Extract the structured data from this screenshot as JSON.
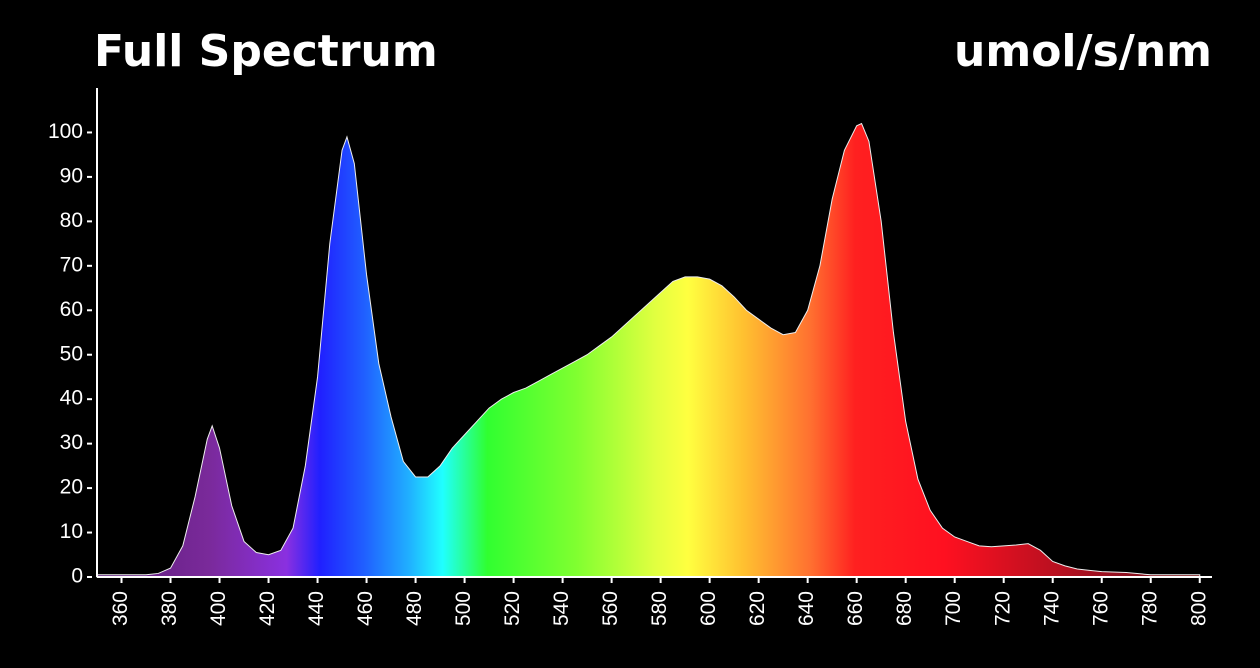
{
  "chart_data": {
    "type": "area",
    "title": "Full Spectrum",
    "y_label": "umol/s/nm",
    "x": [
      350,
      360,
      370,
      375,
      380,
      385,
      390,
      395,
      397,
      400,
      405,
      410,
      415,
      420,
      425,
      430,
      435,
      440,
      445,
      450,
      452,
      455,
      460,
      465,
      470,
      475,
      480,
      485,
      490,
      495,
      500,
      505,
      510,
      515,
      520,
      525,
      530,
      535,
      540,
      545,
      550,
      555,
      560,
      565,
      570,
      575,
      580,
      585,
      590,
      595,
      600,
      605,
      610,
      615,
      620,
      625,
      630,
      635,
      640,
      645,
      650,
      655,
      660,
      662,
      665,
      670,
      675,
      680,
      685,
      690,
      695,
      700,
      705,
      710,
      715,
      720,
      725,
      730,
      735,
      740,
      745,
      750,
      755,
      760,
      770,
      780,
      790,
      800
    ],
    "values": [
      0.5,
      0.5,
      0.5,
      0.8,
      2,
      7,
      18,
      31,
      34,
      29,
      16,
      8,
      5.5,
      5,
      6,
      11,
      25,
      45,
      75,
      96,
      99,
      93,
      68,
      48,
      36,
      26,
      22.5,
      22.5,
      25,
      29,
      32,
      35,
      38,
      40,
      41.5,
      42.5,
      44,
      45.5,
      47,
      48.5,
      50,
      52,
      54,
      56.5,
      59,
      61.5,
      64,
      66.5,
      67.5,
      67.5,
      67,
      65.5,
      63,
      60,
      58,
      56,
      54.5,
      55,
      60,
      70,
      85,
      96,
      101.5,
      102,
      98,
      80,
      55,
      35,
      22,
      15,
      11,
      9,
      8,
      7,
      6.8,
      7,
      7.2,
      7.5,
      6,
      3.5,
      2.5,
      1.8,
      1.5,
      1.2,
      1,
      0.5,
      0.5,
      0.5
    ],
    "xlim": [
      350,
      805
    ],
    "ylim": [
      0,
      110
    ],
    "xticks": [
      360,
      380,
      400,
      420,
      440,
      460,
      480,
      500,
      520,
      540,
      560,
      580,
      600,
      620,
      640,
      660,
      680,
      700,
      720,
      740,
      760,
      780,
      800
    ],
    "yticks": [
      0,
      10,
      20,
      30,
      40,
      50,
      60,
      70,
      80,
      90,
      100
    ]
  }
}
